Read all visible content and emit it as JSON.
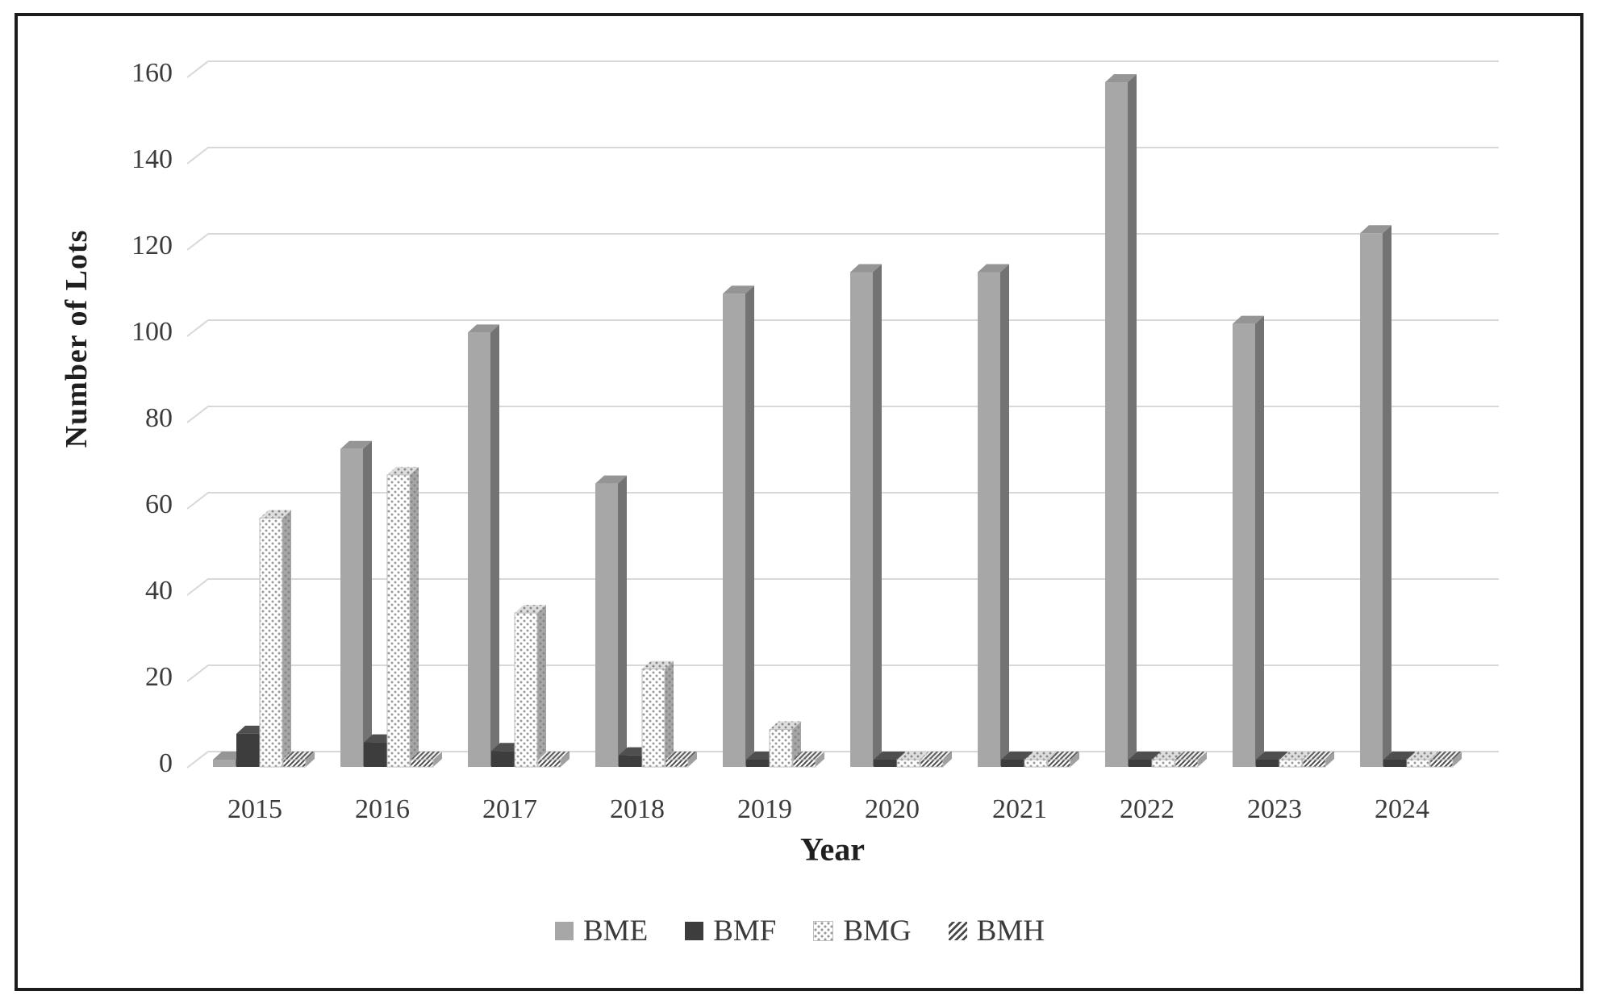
{
  "figure": {
    "background": "#ffffff",
    "border_color": "#1c1c1c"
  },
  "chart_data": {
    "type": "bar",
    "style": "3d-column",
    "title": "",
    "categories": [
      "2015",
      "2016",
      "2017",
      "2018",
      "2019",
      "2020",
      "2021",
      "2022",
      "2023",
      "2024"
    ],
    "series": [
      {
        "name": "BME",
        "pattern": "solid",
        "front": "#a7a7a7",
        "top": "#959595",
        "side": "#737373",
        "values": [
          0,
          72,
          99,
          64,
          108,
          113,
          113,
          157,
          101,
          122
        ]
      },
      {
        "name": "BMF",
        "pattern": "solid",
        "front": "#3d3d3d",
        "top": "#4f4f4f",
        "side": "#2c2c2c",
        "values": [
          6,
          4,
          2,
          1,
          0,
          0,
          0,
          0,
          0,
          0
        ]
      },
      {
        "name": "BMG",
        "pattern": "dots",
        "front": "#ffffff",
        "top": "#dedede",
        "side": "#a0a0a0",
        "values": [
          56,
          66,
          34,
          21,
          7,
          0,
          0,
          0,
          0,
          0
        ]
      },
      {
        "name": "BMH",
        "pattern": "hatch",
        "front": "#ffffff",
        "top": "#ededed",
        "side": "#a0a0a0",
        "values": [
          0,
          0,
          0,
          0,
          0,
          0,
          0,
          0,
          0,
          0
        ]
      }
    ],
    "xlabel": "Year",
    "ylabel": "Number of Lots",
    "ylim": [
      0,
      160
    ],
    "ytick_step": 20,
    "yticks": [
      "0",
      "20",
      "40",
      "60",
      "80",
      "100",
      "120",
      "140",
      "160"
    ],
    "grid": true,
    "legend_position": "bottom",
    "gridline_color": "#d8d8d8",
    "text_color": "#3b3b3b"
  }
}
